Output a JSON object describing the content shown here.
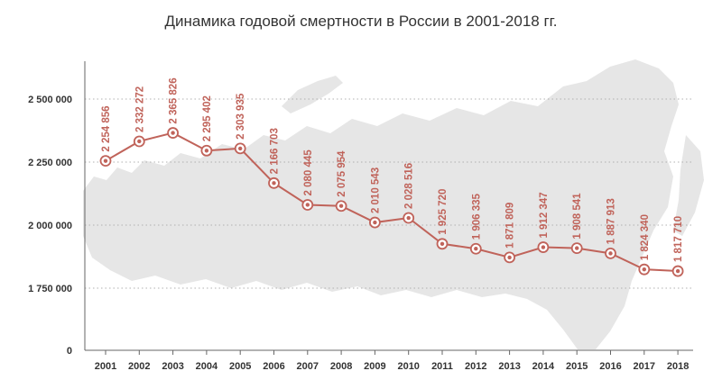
{
  "chart_data": {
    "type": "line",
    "title": "Динамика годовой смертности в России в 2001-2018 гг.",
    "xlabel": "",
    "ylabel": "",
    "categories": [
      "2001",
      "2002",
      "2003",
      "2004",
      "2005",
      "2006",
      "2007",
      "2008",
      "2009",
      "2010",
      "2011",
      "2012",
      "2013",
      "2014",
      "2015",
      "2016",
      "2017",
      "2018"
    ],
    "series": [
      {
        "values": [
          2254856,
          2332272,
          2365826,
          2295402,
          2303935,
          2166703,
          2080445,
          2075954,
          2010543,
          2028516,
          1925720,
          1906335,
          1871809,
          1912347,
          1908541,
          1887913,
          1824340,
          1817710
        ],
        "labels": [
          "2 254 856",
          "2 332 272",
          "2 365 826",
          "2 295 402",
          "2 303 935",
          "2 166 703",
          "2 080 445",
          "2 075 954",
          "2 010 543",
          "2 028 516",
          "1 925 720",
          "1 906 335",
          "1 871 809",
          "1 912 347",
          "1 908 541",
          "1 887 913",
          "1 824 340",
          "1 817 710"
        ]
      }
    ],
    "yticks": [
      0,
      1750000,
      2000000,
      2250000,
      2500000
    ],
    "ytick_labels": [
      "0",
      "1 750 000",
      "2 000 000",
      "2 250 000",
      "2 500 000"
    ],
    "grid": "horizontal dotted",
    "colors": {
      "line": "#c0635a",
      "marker_fill": "#f3dbd8",
      "grid": "#b0b0b0",
      "background_map": "#e4e4e4"
    }
  }
}
